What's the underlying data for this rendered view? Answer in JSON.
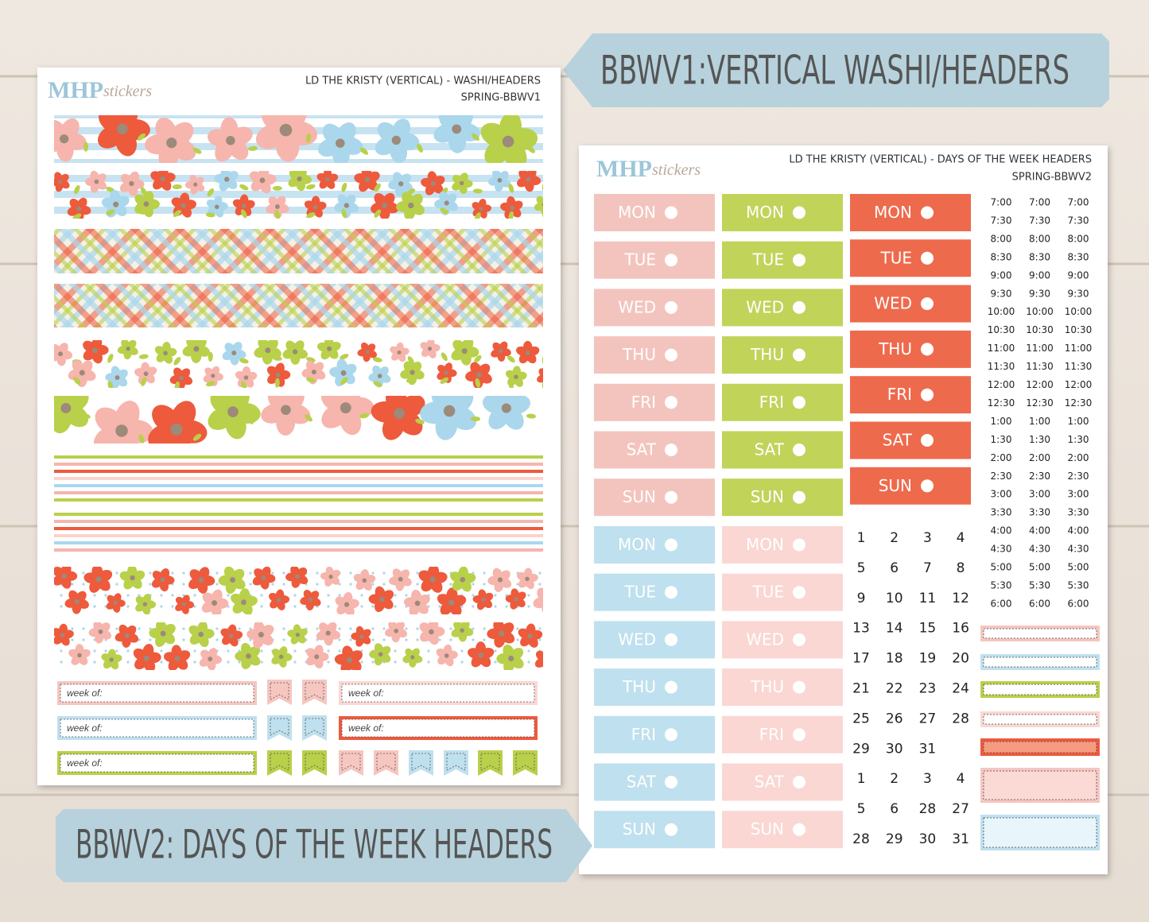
{
  "banners": {
    "top": "BBWV1:VERTICAL WASHI/HEADERS",
    "bottom": "BBWV2: DAYS OF THE WEEK HEADERS"
  },
  "sheet1": {
    "logo": {
      "brand": "MHP",
      "script": "stickers"
    },
    "title": "LD THE KRISTY (VERTICAL) - WASHI/HEADERS",
    "code": "SPRING-BBWV1",
    "week_labels": [
      "week of:",
      "week of:",
      "week of:",
      "week of:",
      "week of:"
    ]
  },
  "sheet2": {
    "logo": {
      "brand": "MHP",
      "script": "stickers"
    },
    "title": "LD THE KRISTY (VERTICAL) - DAYS OF THE WEEK HEADERS",
    "code": "SPRING-BBWV2",
    "day_blocks": [
      [
        "MON",
        "TUE",
        "WED",
        "THU",
        "FRI",
        "SAT",
        "SUN"
      ],
      [
        "MON",
        "TUE",
        "WED",
        "THU",
        "FRI",
        "SAT",
        "SUN"
      ],
      [
        "MON",
        "TUE",
        "WED",
        "THU",
        "FRI",
        "SAT",
        "SUN"
      ],
      [
        "MON",
        "TUE",
        "WED",
        "THU",
        "FRI",
        "SAT",
        "SUN"
      ],
      [
        "MON",
        "TUE",
        "WED",
        "THU",
        "FRI",
        "SAT",
        "SUN"
      ]
    ],
    "times": [
      [
        "7:00",
        "7:30",
        "8:00",
        "8:30",
        "9:00",
        "9:30",
        "10:00",
        "10:30",
        "11:00",
        "11:30",
        "12:00",
        "12:30",
        "1:00",
        "1:30",
        "2:00",
        "2:30",
        "3:00",
        "3:30",
        "4:00",
        "4:30",
        "5:00",
        "5:30",
        "6:00"
      ],
      [
        "7:00",
        "7:30",
        "8:00",
        "8:30",
        "9:00",
        "9:30",
        "10:00",
        "10:30",
        "11:00",
        "11:30",
        "12:00",
        "12:30",
        "1:00",
        "1:30",
        "2:00",
        "2:30",
        "3:00",
        "3:30",
        "4:00",
        "4:30",
        "5:00",
        "5:30",
        "6:00"
      ],
      [
        "7:00",
        "7:30",
        "8:00",
        "8:30",
        "9:00",
        "9:30",
        "10:00",
        "10:30",
        "11:00",
        "11:30",
        "12:00",
        "12:30",
        "1:00",
        "1:30",
        "2:00",
        "2:30",
        "3:00",
        "3:30",
        "4:00",
        "4:30",
        "5:00",
        "5:30",
        "6:00"
      ]
    ],
    "dates": [
      [
        "1",
        "2",
        "3",
        "4"
      ],
      [
        "5",
        "6",
        "7",
        "8"
      ],
      [
        "9",
        "10",
        "11",
        "12"
      ],
      [
        "13",
        "14",
        "15",
        "16"
      ],
      [
        "17",
        "18",
        "19",
        "20"
      ],
      [
        "21",
        "22",
        "23",
        "24"
      ],
      [
        "25",
        "26",
        "27",
        "28"
      ],
      [
        "29",
        "30",
        "31"
      ],
      [
        "1",
        "2",
        "3",
        "4"
      ],
      [
        "5",
        "6",
        "28",
        "27"
      ],
      [
        "28",
        "29",
        "30",
        "31"
      ]
    ]
  }
}
